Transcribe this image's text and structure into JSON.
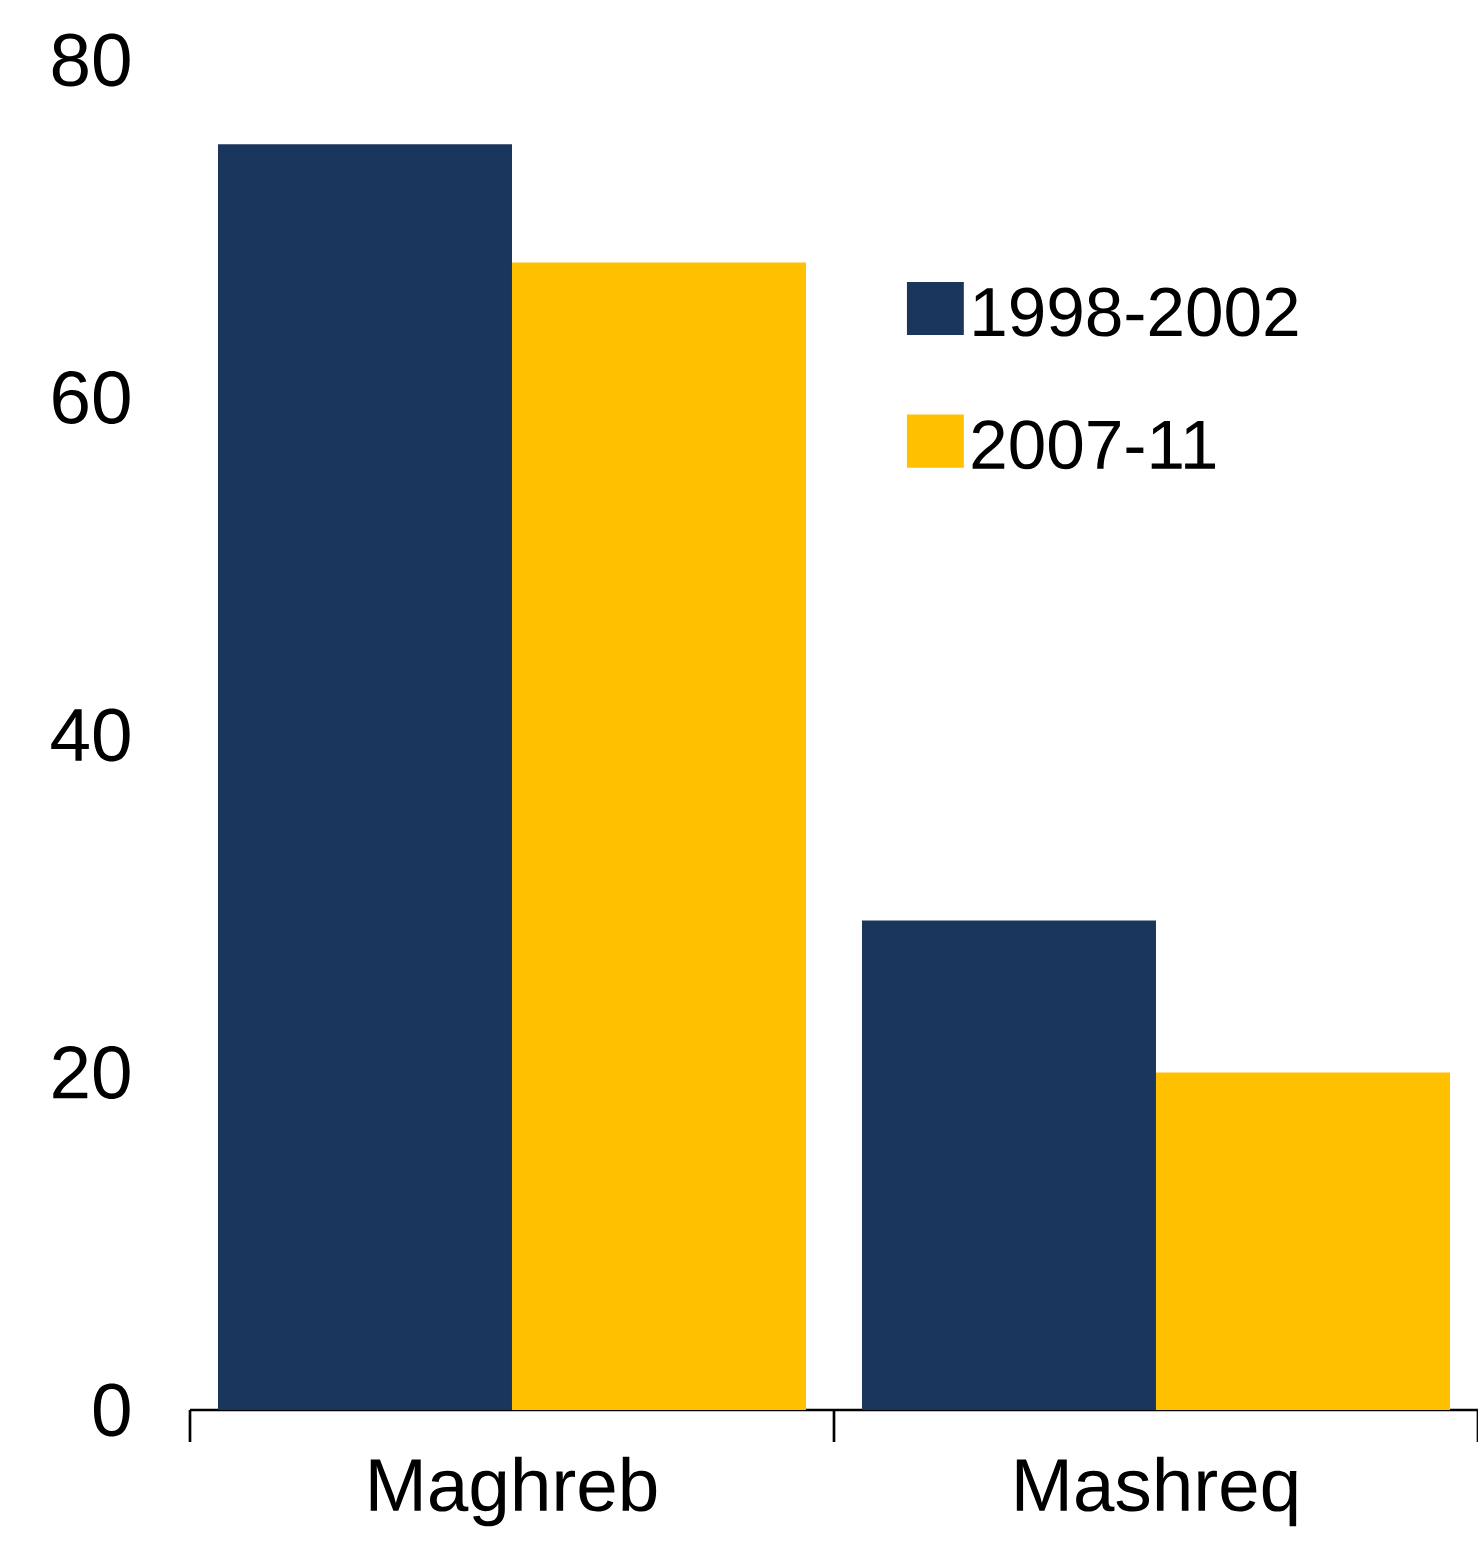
{
  "chart_data": {
    "type": "bar",
    "categories": [
      "Maghreb",
      "Mashreq"
    ],
    "series": [
      {
        "name": "1998-2002",
        "color": "#1b365d",
        "values": [
          75,
          29
        ]
      },
      {
        "name": "2007-11",
        "color": "#ffc000",
        "values": [
          68,
          20
        ]
      }
    ],
    "ylim": [
      0,
      80
    ],
    "yticks": [
      0,
      20,
      40,
      60,
      80
    ],
    "legend": "top right"
  }
}
